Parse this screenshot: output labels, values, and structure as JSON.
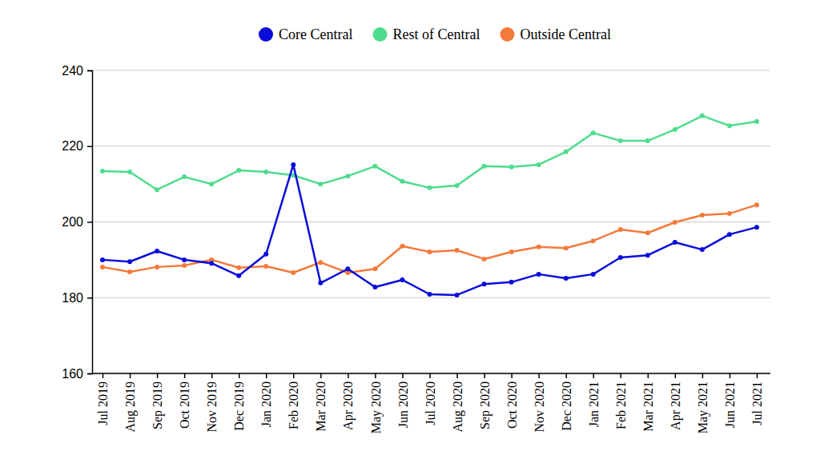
{
  "chart_data": {
    "type": "line",
    "categories": [
      "Jul 2019",
      "Aug 2019",
      "Sep 2019",
      "Oct 2019",
      "Nov 2019",
      "Dec 2019",
      "Jan 2020",
      "Feb 2020",
      "Mar 2020",
      "Apr 2020",
      "May 2020",
      "Jun 2020",
      "Jul 2020",
      "Aug 2020",
      "Sep 2020",
      "Oct 2020",
      "Nov 2020",
      "Dec 2020",
      "Jan 2021",
      "Feb 2021",
      "Mar 2021",
      "Apr 2021",
      "May 2021",
      "Jun 2021",
      "Jul 2021"
    ],
    "series": [
      {
        "name": "Core Central",
        "color": "#0b0bdc",
        "marker": "circle",
        "values": [
          190.0,
          189.5,
          192.3,
          190.0,
          189.1,
          185.8,
          191.5,
          215.1,
          183.9,
          187.6,
          182.8,
          184.7,
          180.9,
          180.7,
          183.6,
          184.1,
          186.2,
          185.1,
          186.2,
          190.6,
          191.2,
          194.6,
          192.7,
          196.7,
          198.6
        ]
      },
      {
        "name": "Rest of Central",
        "color": "#4fdc8f",
        "marker": "circle",
        "values": [
          213.4,
          213.2,
          208.5,
          211.9,
          210.0,
          213.6,
          213.2,
          212.3,
          210.0,
          212.1,
          214.7,
          210.7,
          209.0,
          209.6,
          214.7,
          214.5,
          215.1,
          218.5,
          223.5,
          221.4,
          221.4,
          224.4,
          228.0,
          225.4,
          226.5
        ]
      },
      {
        "name": "Outside Central",
        "color": "#f47a3c",
        "marker": "circle",
        "values": [
          188.1,
          186.8,
          188.1,
          188.5,
          190.0,
          187.9,
          188.3,
          186.6,
          189.3,
          186.6,
          187.6,
          193.6,
          192.1,
          192.5,
          190.2,
          192.1,
          193.4,
          193.1,
          195.0,
          198.0,
          197.1,
          199.9,
          201.8,
          202.2,
          204.5
        ]
      }
    ],
    "ylim": [
      160,
      240
    ],
    "yticks": [
      160,
      180,
      200,
      220,
      240
    ],
    "grid": true,
    "legend": "top"
  }
}
